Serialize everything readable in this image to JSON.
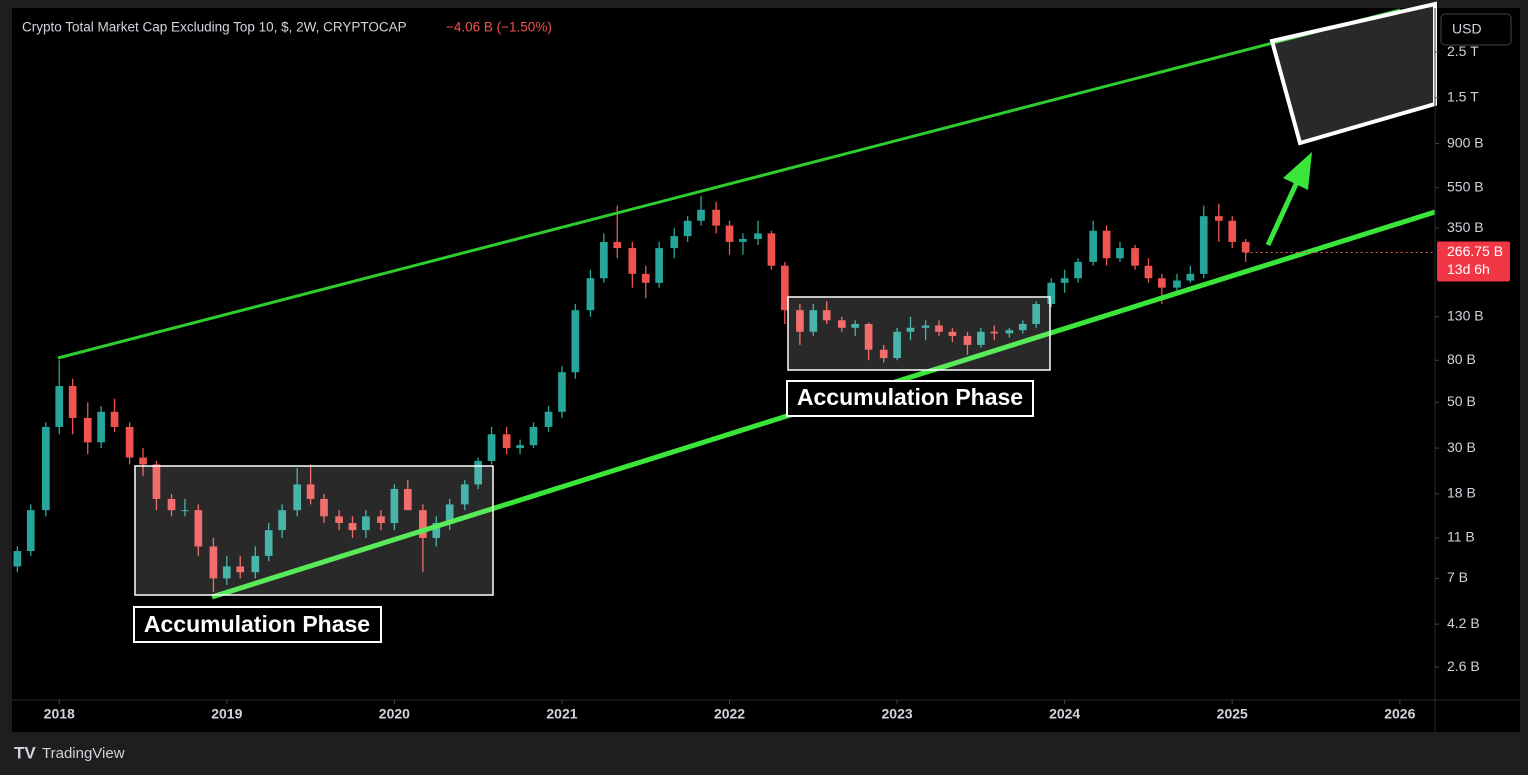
{
  "chart_data": {
    "type": "candlestick",
    "title": "Crypto Total Market Cap Excluding Top 10, $, 2W, CRYPTOCAP",
    "change": "−4.06 B (−1.50%)",
    "currency": "USD",
    "price_label": "266.75 B",
    "countdown": "13d 6h",
    "brand": "TradingView",
    "annotations": [
      "Accumulation Phase",
      "Accumulation Phase"
    ],
    "up_color": "#26a69a",
    "down_color": "#ef5350",
    "log_scale": true,
    "xlim": [
      2017.73,
      2026.21
    ],
    "xticks": [
      2018,
      2019,
      2020,
      2021,
      2022,
      2023,
      2024,
      2025,
      2026
    ],
    "ylim": [
      1.8,
      4000
    ],
    "yticks": [
      {
        "value": 2.6,
        "label": "2.6 B"
      },
      {
        "value": 4.2,
        "label": "4.2 B"
      },
      {
        "value": 7,
        "label": "7 B"
      },
      {
        "value": 11,
        "label": "11 B"
      },
      {
        "value": 18,
        "label": "18 B"
      },
      {
        "value": 30,
        "label": "30 B"
      },
      {
        "value": 50,
        "label": "50 B"
      },
      {
        "value": 80,
        "label": "80 B"
      },
      {
        "value": 130,
        "label": "130 B"
      },
      {
        "value": 350,
        "label": "350 B"
      },
      {
        "value": 550,
        "label": "550 B"
      },
      {
        "value": 900,
        "label": "900 B"
      },
      {
        "value": 1500,
        "label": "1.5 T"
      },
      {
        "value": 2500,
        "label": "2.5 T"
      }
    ],
    "x": [
      2017.75,
      2017.83,
      2017.92,
      2018.0,
      2018.08,
      2018.17,
      2018.25,
      2018.33,
      2018.42,
      2018.5,
      2018.58,
      2018.67,
      2018.75,
      2018.83,
      2018.92,
      2019.0,
      2019.08,
      2019.17,
      2019.25,
      2019.33,
      2019.42,
      2019.5,
      2019.58,
      2019.67,
      2019.75,
      2019.83,
      2019.92,
      2020.0,
      2020.08,
      2020.17,
      2020.25,
      2020.33,
      2020.42,
      2020.5,
      2020.58,
      2020.67,
      2020.75,
      2020.83,
      2020.92,
      2021.0,
      2021.08,
      2021.17,
      2021.25,
      2021.33,
      2021.42,
      2021.5,
      2021.58,
      2021.67,
      2021.75,
      2021.83,
      2021.92,
      2022.0,
      2022.08,
      2022.17,
      2022.25,
      2022.33,
      2022.42,
      2022.5,
      2022.58,
      2022.67,
      2022.75,
      2022.83,
      2022.92,
      2023.0,
      2023.08,
      2023.17,
      2023.25,
      2023.33,
      2023.42,
      2023.5,
      2023.58,
      2023.67,
      2023.75,
      2023.83,
      2023.92,
      2024.0,
      2024.08,
      2024.17,
      2024.25,
      2024.33,
      2024.42,
      2024.5,
      2024.58,
      2024.67,
      2024.75,
      2024.83,
      2024.92,
      2025.0,
      2025.08
    ],
    "open": [
      8,
      9.5,
      15,
      38,
      60,
      42,
      32,
      45,
      38,
      27,
      25,
      17,
      15,
      15,
      10,
      7,
      8,
      7.5,
      9,
      12,
      15,
      20,
      17,
      14,
      13,
      12,
      14,
      13,
      19,
      15,
      11,
      13,
      16,
      20,
      26,
      35,
      30,
      31,
      38,
      45,
      70,
      140,
      200,
      300,
      280,
      210,
      190,
      280,
      320,
      380,
      430,
      360,
      300,
      310,
      330,
      230,
      140,
      110,
      140,
      125,
      115,
      120,
      90,
      82,
      110,
      115,
      118,
      110,
      105,
      95,
      110,
      108,
      112,
      120,
      150,
      190,
      200,
      240,
      340,
      250,
      280,
      230,
      200,
      180,
      195,
      210,
      400,
      380,
      300
    ],
    "high": [
      10,
      16,
      40,
      80,
      65,
      50,
      48,
      52,
      40,
      30,
      26,
      18,
      17,
      16,
      11,
      9,
      9,
      10,
      13,
      16,
      24,
      25,
      18,
      15,
      14,
      15,
      15,
      20,
      21,
      16,
      14,
      17,
      21,
      27,
      38,
      38,
      33,
      40,
      48,
      75,
      150,
      220,
      330,
      450,
      300,
      230,
      300,
      350,
      400,
      500,
      470,
      380,
      330,
      380,
      340,
      240,
      150,
      150,
      155,
      130,
      125,
      122,
      95,
      115,
      130,
      125,
      125,
      115,
      110,
      115,
      118,
      115,
      125,
      155,
      200,
      220,
      250,
      380,
      360,
      300,
      290,
      250,
      210,
      210,
      230,
      450,
      460,
      400,
      310
    ],
    "low": [
      7.5,
      9,
      14,
      35,
      35,
      28,
      30,
      36,
      25,
      22,
      15,
      14,
      14,
      9,
      6,
      6.5,
      7,
      7,
      8.5,
      11,
      14,
      16,
      13,
      12,
      11,
      11,
      12,
      12,
      15,
      7.5,
      10,
      12,
      15,
      19,
      25,
      28,
      28,
      30,
      36,
      42,
      65,
      130,
      190,
      250,
      180,
      160,
      180,
      250,
      300,
      360,
      330,
      260,
      260,
      290,
      220,
      120,
      95,
      105,
      120,
      110,
      105,
      80,
      78,
      80,
      100,
      100,
      105,
      98,
      85,
      92,
      100,
      103,
      108,
      115,
      145,
      170,
      190,
      230,
      230,
      240,
      220,
      190,
      150,
      170,
      190,
      200,
      300,
      280,
      240
    ],
    "close": [
      9.5,
      15,
      38,
      60,
      42,
      32,
      45,
      38,
      27,
      25,
      17,
      15,
      15,
      10,
      7,
      8,
      7.5,
      9,
      12,
      15,
      20,
      17,
      14,
      13,
      12,
      14,
      13,
      19,
      15,
      11,
      13,
      16,
      20,
      26,
      35,
      30,
      31,
      38,
      45,
      70,
      140,
      200,
      300,
      280,
      210,
      190,
      280,
      320,
      380,
      430,
      360,
      300,
      310,
      330,
      230,
      140,
      110,
      140,
      125,
      115,
      120,
      90,
      82,
      110,
      115,
      118,
      110,
      105,
      95,
      110,
      108,
      112,
      120,
      150,
      190,
      200,
      240,
      340,
      250,
      280,
      230,
      200,
      180,
      195,
      210,
      400,
      380,
      300,
      266.75
    ]
  }
}
